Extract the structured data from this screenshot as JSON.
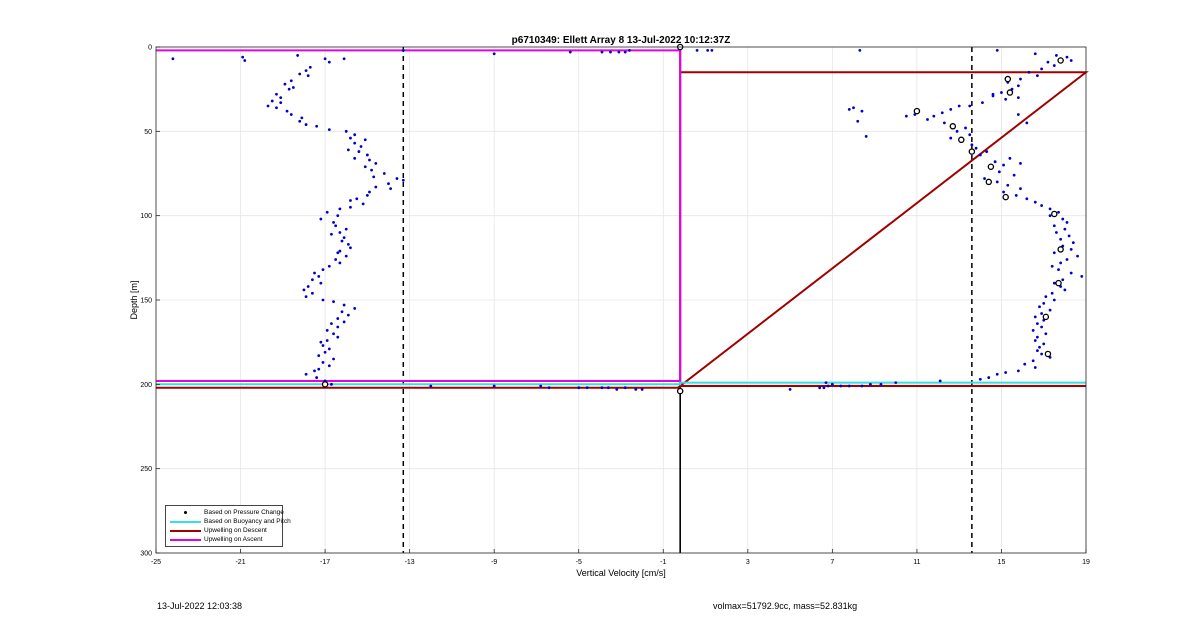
{
  "chart_data": {
    "type": "scatter",
    "title": "p6710349: Ellett Array 8 13-Jul-2022 10:12:37Z",
    "xlabel": "Vertical Velocity [cm/s]",
    "ylabel": "Depth [m]",
    "xlim": [
      -25,
      19
    ],
    "ylim": [
      0,
      300
    ],
    "y_reversed": true,
    "grid": true,
    "xticks": [
      -25,
      -21,
      -17,
      -13,
      -9,
      -5,
      -1,
      3,
      7,
      11,
      15,
      19
    ],
    "yticks": [
      0,
      50,
      100,
      150,
      200,
      250,
      300
    ],
    "legend_position": "bottom-left",
    "legend": [
      {
        "label": "Based on Pressure Change",
        "style": "dot",
        "color": "#000000"
      },
      {
        "label": "Based on Buoyancy and Pitch",
        "style": "line",
        "color": "#33e0e6"
      },
      {
        "label": "Upwelling on Descent",
        "style": "line",
        "color": "#a00000"
      },
      {
        "label": "Upwelling on Ascent",
        "style": "line",
        "color": "#e600e6"
      }
    ],
    "series": [
      {
        "name": "Based on Pressure Change",
        "kind": "scatter",
        "color": "#0000cc",
        "points": [
          [
            -24.2,
            7
          ],
          [
            -20.9,
            6
          ],
          [
            -20.8,
            8
          ],
          [
            -18.3,
            5
          ],
          [
            -17.0,
            7
          ],
          [
            -16.1,
            7
          ],
          [
            -16.8,
            9
          ],
          [
            -17.7,
            12
          ],
          [
            -17.9,
            14
          ],
          [
            -18.2,
            16
          ],
          [
            -17.8,
            17
          ],
          [
            -18.6,
            20
          ],
          [
            -18.9,
            22
          ],
          [
            -18.5,
            24
          ],
          [
            -18.7,
            25
          ],
          [
            -19.3,
            28
          ],
          [
            -19.1,
            30
          ],
          [
            -19.5,
            32
          ],
          [
            -19.1,
            33
          ],
          [
            -19.7,
            35
          ],
          [
            -19.3,
            36
          ],
          [
            -18.8,
            38
          ],
          [
            -18.6,
            40
          ],
          [
            -18.1,
            42
          ],
          [
            -18.2,
            44
          ],
          [
            -17.9,
            46
          ],
          [
            -17.4,
            47
          ],
          [
            -16.8,
            49
          ],
          [
            -16.0,
            50
          ],
          [
            -15.6,
            52
          ],
          [
            -15.8,
            54
          ],
          [
            -15.1,
            55
          ],
          [
            -15.6,
            57
          ],
          [
            -15.3,
            59
          ],
          [
            -15.9,
            61
          ],
          [
            -15.4,
            62
          ],
          [
            -15.0,
            64
          ],
          [
            -15.6,
            66
          ],
          [
            -14.9,
            67
          ],
          [
            -14.6,
            69
          ],
          [
            -15.1,
            71
          ],
          [
            -14.8,
            73
          ],
          [
            -14.2,
            75
          ],
          [
            -14.7,
            77
          ],
          [
            -13.6,
            78
          ],
          [
            -13.3,
            79
          ],
          [
            -14.0,
            81
          ],
          [
            -14.6,
            83
          ],
          [
            -13.9,
            84
          ],
          [
            -14.9,
            86
          ],
          [
            -15.0,
            88
          ],
          [
            -15.5,
            90
          ],
          [
            -15.8,
            91
          ],
          [
            -15.2,
            93
          ],
          [
            -15.8,
            95
          ],
          [
            -16.3,
            96
          ],
          [
            -16.9,
            98
          ],
          [
            -16.4,
            100
          ],
          [
            -17.2,
            102
          ],
          [
            -16.6,
            104
          ],
          [
            -16.5,
            106
          ],
          [
            -16.0,
            108
          ],
          [
            -16.3,
            110
          ],
          [
            -16.7,
            111
          ],
          [
            -16.1,
            113
          ],
          [
            -16.2,
            115
          ],
          [
            -15.9,
            117
          ],
          [
            -15.8,
            119
          ],
          [
            -16.3,
            121
          ],
          [
            -16.4,
            122
          ],
          [
            -16.0,
            124
          ],
          [
            -16.5,
            126
          ],
          [
            -16.3,
            128
          ],
          [
            -16.8,
            130
          ],
          [
            -17.1,
            132
          ],
          [
            -17.5,
            134
          ],
          [
            -17.3,
            136
          ],
          [
            -17.6,
            138
          ],
          [
            -17.2,
            140
          ],
          [
            -17.8,
            142
          ],
          [
            -18.0,
            144
          ],
          [
            -17.6,
            146
          ],
          [
            -17.9,
            148
          ],
          [
            -17.1,
            150
          ],
          [
            -16.6,
            151
          ],
          [
            -16.1,
            153
          ],
          [
            -15.6,
            155
          ],
          [
            -16.2,
            157
          ],
          [
            -15.9,
            159
          ],
          [
            -16.4,
            161
          ],
          [
            -16.1,
            163
          ],
          [
            -16.7,
            164
          ],
          [
            -16.4,
            166
          ],
          [
            -16.9,
            168
          ],
          [
            -16.6,
            170
          ],
          [
            -16.4,
            172
          ],
          [
            -16.9,
            174
          ],
          [
            -17.2,
            175
          ],
          [
            -17.1,
            177
          ],
          [
            -16.8,
            179
          ],
          [
            -17.0,
            181
          ],
          [
            -17.3,
            183
          ],
          [
            -16.6,
            185
          ],
          [
            -17.1,
            187
          ],
          [
            -16.8,
            189
          ],
          [
            -17.3,
            191
          ],
          [
            -17.5,
            192
          ],
          [
            -17.9,
            194
          ],
          [
            -17.4,
            196
          ],
          [
            -17.0,
            198
          ],
          [
            -16.7,
            200
          ],
          [
            -13.3,
            2
          ],
          [
            -9.0,
            4
          ],
          [
            -5.4,
            3
          ],
          [
            -3.9,
            3
          ],
          [
            -3.5,
            3
          ],
          [
            -3.1,
            3
          ],
          [
            -2.8,
            3
          ],
          [
            -2.6,
            2
          ],
          [
            -12.0,
            201
          ],
          [
            -9.0,
            201
          ],
          [
            -6.8,
            201
          ],
          [
            -6.4,
            202
          ],
          [
            -5.0,
            202
          ],
          [
            -4.6,
            202
          ],
          [
            -3.9,
            202
          ],
          [
            -3.6,
            202
          ],
          [
            -3.2,
            203
          ],
          [
            -2.8,
            202
          ],
          [
            -2.3,
            203
          ],
          [
            -2.0,
            203
          ],
          [
            0.6,
            2
          ],
          [
            1.1,
            2
          ],
          [
            1.3,
            2
          ],
          [
            8.3,
            2
          ],
          [
            14.8,
            2
          ],
          [
            16.6,
            4
          ],
          [
            17.2,
            9
          ],
          [
            17.6,
            5
          ],
          [
            17.8,
            7
          ],
          [
            18.1,
            6
          ],
          [
            18.3,
            8
          ],
          [
            17.5,
            11
          ],
          [
            16.9,
            13
          ],
          [
            16.3,
            15
          ],
          [
            16.7,
            17
          ],
          [
            15.9,
            19
          ],
          [
            15.3,
            21
          ],
          [
            15.8,
            23
          ],
          [
            15.5,
            25
          ],
          [
            15.0,
            27
          ],
          [
            14.6,
            29
          ],
          [
            15.8,
            30
          ],
          [
            15.2,
            31
          ],
          [
            14.1,
            33
          ],
          [
            13.5,
            35
          ],
          [
            13.0,
            35
          ],
          [
            12.6,
            37
          ],
          [
            12.2,
            39
          ],
          [
            11.8,
            41
          ],
          [
            10.9,
            40
          ],
          [
            10.5,
            41
          ],
          [
            11.5,
            43
          ],
          [
            12.3,
            45
          ],
          [
            12.7,
            47
          ],
          [
            13.3,
            48
          ],
          [
            12.9,
            50
          ],
          [
            13.5,
            52
          ],
          [
            12.6,
            54
          ],
          [
            13.1,
            56
          ],
          [
            13.6,
            58
          ],
          [
            13.8,
            60
          ],
          [
            14.3,
            62
          ],
          [
            14.0,
            64
          ],
          [
            15.4,
            66
          ],
          [
            14.7,
            68
          ],
          [
            15.1,
            70
          ],
          [
            14.5,
            72
          ],
          [
            14.9,
            74
          ],
          [
            15.6,
            76
          ],
          [
            14.2,
            78
          ],
          [
            14.8,
            80
          ],
          [
            15.3,
            82
          ],
          [
            15.9,
            84
          ],
          [
            15.1,
            86
          ],
          [
            15.7,
            88
          ],
          [
            16.2,
            90
          ],
          [
            16.6,
            92
          ],
          [
            16.9,
            94
          ],
          [
            17.3,
            96
          ],
          [
            17.7,
            98
          ],
          [
            17.3,
            100
          ],
          [
            17.9,
            102
          ],
          [
            18.1,
            104
          ],
          [
            17.5,
            106
          ],
          [
            18.0,
            108
          ],
          [
            17.6,
            110
          ],
          [
            18.2,
            112
          ],
          [
            17.8,
            114
          ],
          [
            18.4,
            116
          ],
          [
            17.9,
            118
          ],
          [
            18.3,
            120
          ],
          [
            17.5,
            122
          ],
          [
            18.6,
            124
          ],
          [
            18.1,
            126
          ],
          [
            17.8,
            128
          ],
          [
            17.4,
            130
          ],
          [
            17.7,
            132
          ],
          [
            18.3,
            134
          ],
          [
            18.8,
            136
          ],
          [
            17.9,
            138
          ],
          [
            17.5,
            140
          ],
          [
            17.8,
            142
          ],
          [
            18.0,
            144
          ],
          [
            17.4,
            146
          ],
          [
            17.1,
            148
          ],
          [
            17.5,
            150
          ],
          [
            17.0,
            152
          ],
          [
            16.8,
            154
          ],
          [
            17.3,
            156
          ],
          [
            16.9,
            158
          ],
          [
            16.6,
            160
          ],
          [
            17.0,
            162
          ],
          [
            16.7,
            164
          ],
          [
            16.9,
            166
          ],
          [
            16.5,
            168
          ],
          [
            17.1,
            170
          ],
          [
            16.7,
            172
          ],
          [
            16.6,
            174
          ],
          [
            17.0,
            176
          ],
          [
            16.8,
            178
          ],
          [
            16.7,
            180
          ],
          [
            16.9,
            182
          ],
          [
            17.3,
            184
          ],
          [
            16.5,
            186
          ],
          [
            16.1,
            188
          ],
          [
            16.6,
            190
          ],
          [
            15.8,
            192
          ],
          [
            15.2,
            193
          ],
          [
            14.8,
            194
          ],
          [
            14.4,
            196
          ],
          [
            14.0,
            197
          ],
          [
            12.1,
            198
          ],
          [
            10.0,
            199
          ],
          [
            9.3,
            200
          ],
          [
            8.8,
            200
          ],
          [
            8.4,
            201
          ],
          [
            7.8,
            201
          ],
          [
            7.4,
            201
          ],
          [
            7.0,
            200
          ],
          [
            6.8,
            201
          ],
          [
            6.7,
            199
          ],
          [
            6.6,
            202
          ],
          [
            6.4,
            202
          ],
          [
            5.0,
            203
          ],
          [
            8.0,
            36
          ],
          [
            7.8,
            37
          ],
          [
            8.4,
            38
          ],
          [
            8.2,
            44
          ],
          [
            8.6,
            53
          ],
          [
            14.6,
            28
          ],
          [
            15.9,
            69
          ],
          [
            15.8,
            40
          ],
          [
            16.2,
            45
          ]
        ]
      },
      {
        "name": "Based on Pressure Change",
        "kind": "marker",
        "color": "#000000",
        "points": [
          [
            -0.2,
            0
          ],
          [
            -0.2,
            204
          ],
          [
            -17.0,
            200
          ],
          [
            17.8,
            8
          ],
          [
            15.3,
            19
          ],
          [
            15.4,
            27
          ],
          [
            11.0,
            38
          ],
          [
            12.7,
            47
          ],
          [
            13.1,
            55
          ],
          [
            13.6,
            62
          ],
          [
            14.5,
            71
          ],
          [
            14.4,
            80
          ],
          [
            15.2,
            89
          ],
          [
            17.5,
            99
          ],
          [
            17.8,
            120
          ],
          [
            17.7,
            140
          ],
          [
            17.1,
            160
          ],
          [
            17.2,
            182
          ]
        ]
      },
      {
        "name": "Upwelling on Descent",
        "kind": "step",
        "color": "#a00000",
        "points": [
          [
            -25,
            202
          ],
          [
            -0.2,
            202
          ],
          [
            -0.2,
            1
          ],
          [
            -0.2,
            15
          ],
          [
            19,
            15
          ],
          [
            -0.2,
            201
          ],
          [
            19,
            201
          ]
        ]
      },
      {
        "name": "Upwelling on Ascent",
        "kind": "step",
        "color": "#e600e6",
        "points": [
          [
            -25,
            2
          ],
          [
            -0.2,
            2
          ],
          [
            -0.2,
            198
          ],
          [
            -25,
            198
          ]
        ]
      },
      {
        "name": "Based on Buoyancy and Pitch",
        "kind": "step",
        "color": "#33e0e6",
        "points": [
          [
            -25,
            200
          ],
          [
            -0.2,
            200
          ],
          [
            -0.2,
            199
          ],
          [
            19,
            199
          ]
        ]
      }
    ],
    "reference_lines": [
      {
        "axis": "x",
        "value": -13.3,
        "style": "dashed",
        "color": "#000000"
      },
      {
        "axis": "x",
        "value": 13.6,
        "style": "dashed",
        "color": "#000000"
      },
      {
        "axis": "x",
        "value": -0.2,
        "style": "solid",
        "color": "#000000"
      }
    ]
  },
  "footer": {
    "timestamp": "13-Jul-2022 12:03:38",
    "stats": "volmax=51792.9cc, mass=52.831kg"
  }
}
